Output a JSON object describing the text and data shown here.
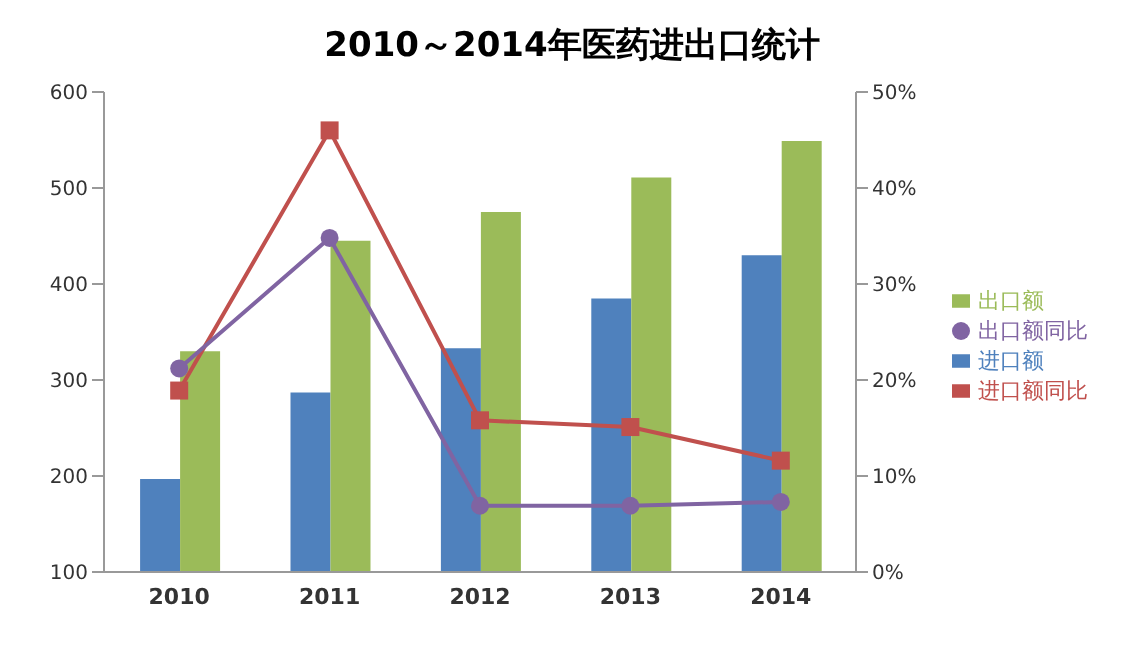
{
  "chart_data": {
    "type": "bar",
    "title": "2010～2014年医药进出口统计",
    "categories": [
      "2010",
      "2011",
      "2012",
      "2013",
      "2014"
    ],
    "series": [
      {
        "name": "进口额",
        "color": "#4f81bd",
        "values": [
          197,
          287,
          333,
          385,
          430
        ]
      },
      {
        "name": "出口额",
        "color": "#9bbb59",
        "values": [
          330,
          445,
          475,
          511,
          549
        ]
      },
      {
        "name": "进口额同比",
        "type": "line",
        "axis": "y2",
        "marker": "square",
        "color": "#c0504d",
        "values": [
          18.9,
          46.0,
          15.8,
          15.1,
          11.6
        ]
      },
      {
        "name": "出口额同比",
        "type": "line",
        "axis": "y2",
        "marker": "circle",
        "color": "#8064a2",
        "values": [
          21.2,
          34.8,
          6.9,
          6.9,
          7.3
        ]
      }
    ],
    "ylim": [
      100,
      600
    ],
    "yticks": [
      100,
      200,
      300,
      400,
      500,
      600
    ],
    "y2lim": [
      0,
      50
    ],
    "y2ticks": [
      {
        "value": 0,
        "label": "0%"
      },
      {
        "value": 10,
        "label": "10%"
      },
      {
        "value": 20,
        "label": "20%"
      },
      {
        "value": 30,
        "label": "30%"
      },
      {
        "value": 40,
        "label": "40%"
      },
      {
        "value": 50,
        "label": "50%"
      }
    ],
    "grid": false,
    "legend": "right"
  }
}
